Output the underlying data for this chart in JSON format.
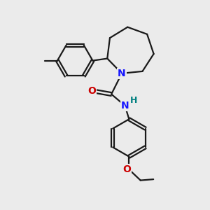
{
  "background_color": "#ebebeb",
  "bond_color": "#1a1a1a",
  "N_color": "#1414ff",
  "O_color": "#cc0000",
  "NH_color": "#008080",
  "figsize": [
    3.0,
    3.0
  ],
  "dpi": 100,
  "xlim": [
    0,
    10
  ],
  "ylim": [
    0,
    10
  ]
}
